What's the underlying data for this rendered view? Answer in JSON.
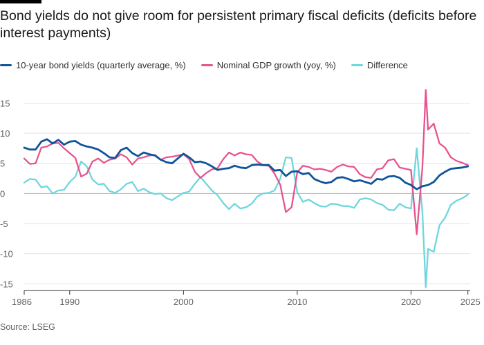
{
  "title": "Bond yields do not give room for persistent primary fiscal deficits (deficits before interest payments)",
  "source": "Source: LSEG",
  "colors": {
    "bond": "#0f5499",
    "gdp": "#e8538f",
    "diff": "#6fd6de",
    "grid": "#e6e3df",
    "zero": "#b8b3ae",
    "axis": "#66605c"
  },
  "chart_data": {
    "type": "line",
    "xlim": [
      1986,
      2025.2
    ],
    "ylim": [
      -16,
      17
    ],
    "yticks": [
      15,
      10,
      5,
      0,
      -5,
      -10,
      -15
    ],
    "xticks": [
      1986,
      1990,
      2000,
      2010,
      2020,
      2025
    ],
    "series": [
      {
        "name": "10-year bond yields (quarterly average, %)",
        "key": "bond",
        "points": [
          [
            1986.0,
            7.6
          ],
          [
            1986.5,
            7.3
          ],
          [
            1987.0,
            7.3
          ],
          [
            1987.5,
            8.6
          ],
          [
            1988.0,
            9.0
          ],
          [
            1988.5,
            8.3
          ],
          [
            1989.0,
            8.9
          ],
          [
            1989.5,
            8.1
          ],
          [
            1990.0,
            8.6
          ],
          [
            1990.5,
            8.7
          ],
          [
            1991.0,
            8.1
          ],
          [
            1991.5,
            7.8
          ],
          [
            1992.0,
            7.6
          ],
          [
            1992.5,
            7.3
          ],
          [
            1993.0,
            6.7
          ],
          [
            1993.5,
            6.0
          ],
          [
            1994.0,
            5.9
          ],
          [
            1994.5,
            7.2
          ],
          [
            1995.0,
            7.6
          ],
          [
            1995.5,
            6.7
          ],
          [
            1996.0,
            6.2
          ],
          [
            1996.5,
            6.8
          ],
          [
            1997.0,
            6.5
          ],
          [
            1997.5,
            6.3
          ],
          [
            1998.0,
            5.6
          ],
          [
            1998.5,
            5.2
          ],
          [
            1999.0,
            5.0
          ],
          [
            1999.5,
            5.8
          ],
          [
            2000.0,
            6.6
          ],
          [
            2000.5,
            6.0
          ],
          [
            2001.0,
            5.2
          ],
          [
            2001.5,
            5.3
          ],
          [
            2002.0,
            5.0
          ],
          [
            2002.5,
            4.5
          ],
          [
            2003.0,
            3.9
          ],
          [
            2003.5,
            4.1
          ],
          [
            2004.0,
            4.2
          ],
          [
            2004.5,
            4.6
          ],
          [
            2005.0,
            4.3
          ],
          [
            2005.5,
            4.2
          ],
          [
            2006.0,
            4.7
          ],
          [
            2006.5,
            4.8
          ],
          [
            2007.0,
            4.7
          ],
          [
            2007.5,
            4.7
          ],
          [
            2008.0,
            3.8
          ],
          [
            2008.5,
            3.9
          ],
          [
            2009.0,
            2.9
          ],
          [
            2009.5,
            3.6
          ],
          [
            2010.0,
            3.7
          ],
          [
            2010.5,
            3.2
          ],
          [
            2011.0,
            3.4
          ],
          [
            2011.5,
            2.4
          ],
          [
            2012.0,
            2.0
          ],
          [
            2012.5,
            1.7
          ],
          [
            2013.0,
            1.9
          ],
          [
            2013.5,
            2.6
          ],
          [
            2014.0,
            2.7
          ],
          [
            2014.5,
            2.4
          ],
          [
            2015.0,
            2.0
          ],
          [
            2015.5,
            2.2
          ],
          [
            2016.0,
            1.9
          ],
          [
            2016.5,
            1.6
          ],
          [
            2017.0,
            2.4
          ],
          [
            2017.5,
            2.3
          ],
          [
            2018.0,
            2.8
          ],
          [
            2018.5,
            2.9
          ],
          [
            2019.0,
            2.6
          ],
          [
            2019.5,
            1.8
          ],
          [
            2020.0,
            1.4
          ],
          [
            2020.5,
            0.7
          ],
          [
            2021.0,
            1.2
          ],
          [
            2021.5,
            1.4
          ],
          [
            2022.0,
            1.9
          ],
          [
            2022.5,
            3.0
          ],
          [
            2023.0,
            3.6
          ],
          [
            2023.5,
            4.1
          ],
          [
            2024.0,
            4.2
          ],
          [
            2024.5,
            4.3
          ],
          [
            2025.0,
            4.5
          ]
        ]
      },
      {
        "name": "Nominal GDP growth (yoy, %)",
        "key": "gdp",
        "points": [
          [
            1986.0,
            5.8
          ],
          [
            1986.5,
            4.9
          ],
          [
            1987.0,
            5.0
          ],
          [
            1987.5,
            7.6
          ],
          [
            1988.0,
            7.8
          ],
          [
            1988.5,
            8.3
          ],
          [
            1989.0,
            8.4
          ],
          [
            1989.5,
            7.5
          ],
          [
            1990.0,
            6.7
          ],
          [
            1990.5,
            5.9
          ],
          [
            1991.0,
            2.8
          ],
          [
            1991.5,
            3.3
          ],
          [
            1992.0,
            5.3
          ],
          [
            1992.5,
            5.8
          ],
          [
            1993.0,
            5.1
          ],
          [
            1993.5,
            5.6
          ],
          [
            1994.0,
            5.8
          ],
          [
            1994.5,
            6.5
          ],
          [
            1995.0,
            6.0
          ],
          [
            1995.5,
            4.8
          ],
          [
            1996.0,
            5.8
          ],
          [
            1996.5,
            6.0
          ],
          [
            1997.0,
            6.3
          ],
          [
            1997.5,
            6.4
          ],
          [
            1998.0,
            5.6
          ],
          [
            1998.5,
            6.0
          ],
          [
            1999.0,
            6.1
          ],
          [
            1999.5,
            6.3
          ],
          [
            2000.0,
            6.5
          ],
          [
            2000.5,
            5.7
          ],
          [
            2001.0,
            3.6
          ],
          [
            2001.5,
            2.6
          ],
          [
            2002.0,
            3.4
          ],
          [
            2002.5,
            4.0
          ],
          [
            2003.0,
            4.2
          ],
          [
            2003.5,
            5.7
          ],
          [
            2004.0,
            6.8
          ],
          [
            2004.5,
            6.3
          ],
          [
            2005.0,
            6.8
          ],
          [
            2005.5,
            6.5
          ],
          [
            2006.0,
            6.4
          ],
          [
            2006.5,
            5.3
          ],
          [
            2007.0,
            4.7
          ],
          [
            2007.5,
            4.6
          ],
          [
            2008.0,
            3.3
          ],
          [
            2008.5,
            1.5
          ],
          [
            2009.0,
            -3.1
          ],
          [
            2009.5,
            -2.3
          ],
          [
            2010.0,
            3.5
          ],
          [
            2010.5,
            4.6
          ],
          [
            2011.0,
            4.4
          ],
          [
            2011.5,
            4.0
          ],
          [
            2012.0,
            4.1
          ],
          [
            2012.5,
            3.9
          ],
          [
            2013.0,
            3.6
          ],
          [
            2013.5,
            4.4
          ],
          [
            2014.0,
            4.8
          ],
          [
            2014.5,
            4.5
          ],
          [
            2015.0,
            4.4
          ],
          [
            2015.5,
            3.2
          ],
          [
            2016.0,
            2.7
          ],
          [
            2016.5,
            2.6
          ],
          [
            2017.0,
            4.0
          ],
          [
            2017.5,
            4.2
          ],
          [
            2018.0,
            5.5
          ],
          [
            2018.5,
            5.7
          ],
          [
            2019.0,
            4.3
          ],
          [
            2019.5,
            4.1
          ],
          [
            2020.0,
            3.9
          ],
          [
            2020.5,
            -6.8
          ],
          [
            2021.0,
            4.3
          ],
          [
            2021.3,
            17.2
          ],
          [
            2021.5,
            10.6
          ],
          [
            2022.0,
            11.6
          ],
          [
            2022.5,
            8.3
          ],
          [
            2023.0,
            7.6
          ],
          [
            2023.5,
            6.0
          ],
          [
            2024.0,
            5.4
          ],
          [
            2024.5,
            5.1
          ],
          [
            2025.0,
            4.7
          ]
        ]
      },
      {
        "name": "Difference",
        "key": "diff",
        "points": [
          [
            1986.0,
            1.8
          ],
          [
            1986.5,
            2.4
          ],
          [
            1987.0,
            2.3
          ],
          [
            1987.5,
            1.0
          ],
          [
            1988.0,
            1.2
          ],
          [
            1988.5,
            0.0
          ],
          [
            1989.0,
            0.5
          ],
          [
            1989.5,
            0.6
          ],
          [
            1990.0,
            1.9
          ],
          [
            1990.5,
            2.8
          ],
          [
            1991.0,
            5.3
          ],
          [
            1991.5,
            4.5
          ],
          [
            1992.0,
            2.3
          ],
          [
            1992.5,
            1.5
          ],
          [
            1993.0,
            1.6
          ],
          [
            1993.5,
            0.4
          ],
          [
            1994.0,
            0.1
          ],
          [
            1994.5,
            0.7
          ],
          [
            1995.0,
            1.6
          ],
          [
            1995.5,
            1.9
          ],
          [
            1996.0,
            0.4
          ],
          [
            1996.5,
            0.8
          ],
          [
            1997.0,
            0.2
          ],
          [
            1997.5,
            -0.1
          ],
          [
            1998.0,
            0.0
          ],
          [
            1998.5,
            -0.8
          ],
          [
            1999.0,
            -1.1
          ],
          [
            1999.5,
            -0.5
          ],
          [
            2000.0,
            0.1
          ],
          [
            2000.5,
            0.3
          ],
          [
            2001.0,
            1.6
          ],
          [
            2001.5,
            2.7
          ],
          [
            2002.0,
            1.6
          ],
          [
            2002.5,
            0.5
          ],
          [
            2003.0,
            -0.3
          ],
          [
            2003.5,
            -1.6
          ],
          [
            2004.0,
            -2.6
          ],
          [
            2004.5,
            -1.7
          ],
          [
            2005.0,
            -2.5
          ],
          [
            2005.5,
            -2.3
          ],
          [
            2006.0,
            -1.7
          ],
          [
            2006.5,
            -0.5
          ],
          [
            2007.0,
            0.0
          ],
          [
            2007.5,
            0.1
          ],
          [
            2008.0,
            0.5
          ],
          [
            2008.5,
            2.4
          ],
          [
            2009.0,
            6.0
          ],
          [
            2009.5,
            5.9
          ],
          [
            2010.0,
            0.2
          ],
          [
            2010.5,
            -1.4
          ],
          [
            2011.0,
            -1.0
          ],
          [
            2011.5,
            -1.6
          ],
          [
            2012.0,
            -2.1
          ],
          [
            2012.5,
            -2.2
          ],
          [
            2013.0,
            -1.7
          ],
          [
            2013.5,
            -1.8
          ],
          [
            2014.0,
            -2.1
          ],
          [
            2014.5,
            -2.1
          ],
          [
            2015.0,
            -2.4
          ],
          [
            2015.5,
            -1.0
          ],
          [
            2016.0,
            -0.8
          ],
          [
            2016.5,
            -1.0
          ],
          [
            2017.0,
            -1.6
          ],
          [
            2017.5,
            -1.9
          ],
          [
            2018.0,
            -2.7
          ],
          [
            2018.5,
            -2.8
          ],
          [
            2019.0,
            -1.7
          ],
          [
            2019.5,
            -2.3
          ],
          [
            2020.0,
            -2.5
          ],
          [
            2020.5,
            7.5
          ],
          [
            2021.0,
            -3.1
          ],
          [
            2021.3,
            -15.6
          ],
          [
            2021.5,
            -9.2
          ],
          [
            2022.0,
            -9.7
          ],
          [
            2022.5,
            -5.3
          ],
          [
            2023.0,
            -4.0
          ],
          [
            2023.5,
            -1.9
          ],
          [
            2024.0,
            -1.2
          ],
          [
            2024.5,
            -0.8
          ],
          [
            2025.0,
            -0.2
          ]
        ]
      }
    ]
  }
}
